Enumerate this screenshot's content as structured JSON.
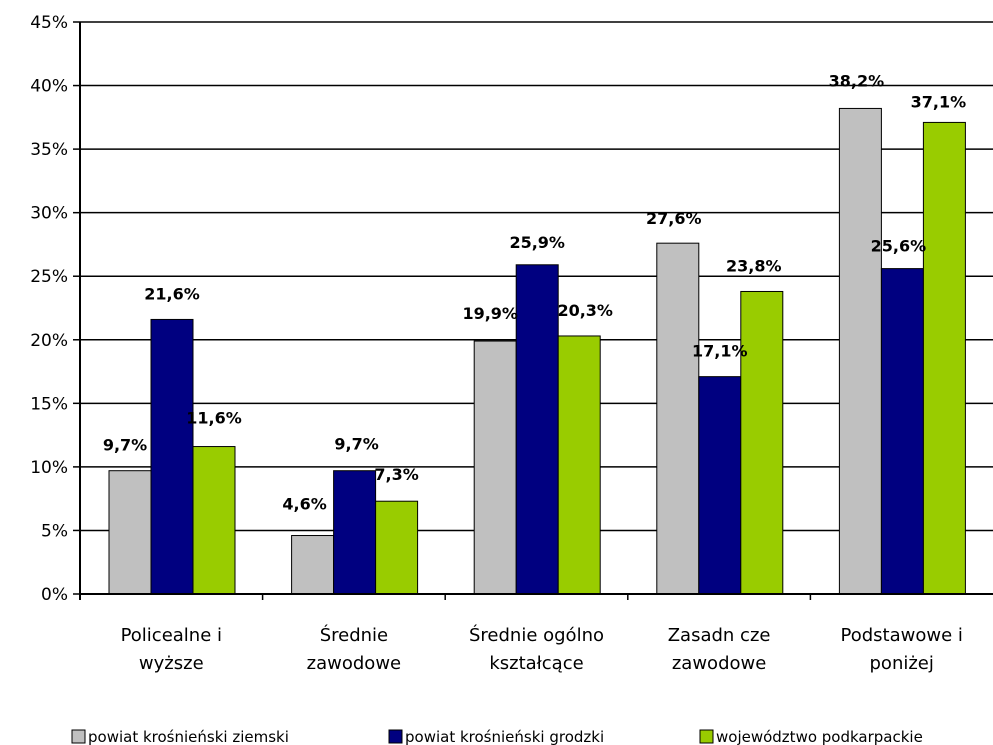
{
  "chart_data": {
    "type": "bar",
    "categories": [
      [
        "Policealne i",
        "wyższe"
      ],
      [
        "Średnie",
        "zawodowe"
      ],
      [
        "Średnie  ogólno",
        "kształcące"
      ],
      [
        "Zasadn cze",
        "zawodowe"
      ],
      [
        "Podstawowe i",
        "poniżej"
      ]
    ],
    "series": [
      {
        "name": "powiat krośnieński ziemski",
        "color": "#c0c0c0",
        "values": [
          9.7,
          4.6,
          19.9,
          27.6,
          38.2
        ],
        "labels": [
          "9,7%",
          "4,6%",
          "19,9%",
          "27,6%",
          "38,2%"
        ]
      },
      {
        "name": "powiat krośnieński grodzki",
        "color": "#000080",
        "values": [
          21.6,
          9.7,
          25.9,
          17.1,
          25.6
        ],
        "labels": [
          "21,6%",
          "9,7%",
          "25,9%",
          "17,1%",
          "25,6%"
        ]
      },
      {
        "name": "województwo podkarpackie",
        "color": "#99cc00",
        "values": [
          11.6,
          7.3,
          20.3,
          23.8,
          37.1
        ],
        "labels": [
          "11,6%",
          "7,3%",
          "20,3%",
          "23,8%",
          "37,1%"
        ]
      }
    ],
    "yticks": [
      "0%",
      "5%",
      "10%",
      "15%",
      "20%",
      "25%",
      "30%",
      "35%",
      "40%",
      "45%"
    ],
    "ylim": [
      0,
      45
    ],
    "grid": true,
    "legend_position": "bottom"
  }
}
